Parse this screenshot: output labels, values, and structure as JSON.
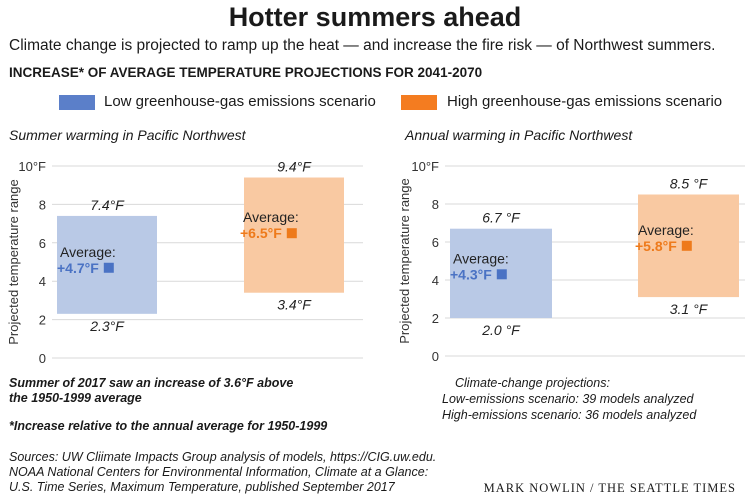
{
  "title": "Hotter summers ahead",
  "subtitle": "Climate change is projected to ramp up the heat — and increase the fire risk — of Northwest summers.",
  "section_heading": "INCREASE* OF AVERAGE TEMPERATURE PROJECTIONS FOR 2041-2070",
  "legend": [
    {
      "label": "Low greenhouse-gas emissions scenario",
      "color": "#5b7fc9"
    },
    {
      "label": "High greenhouse-gas emissions scenario",
      "color": "#f47c20"
    }
  ],
  "colors": {
    "low_fill": "#b9c9e6",
    "high_fill": "#f9c9a2",
    "low_text": "#4a72c4",
    "high_text": "#ee7a1b"
  },
  "chart_data": [
    {
      "type": "bar",
      "title": "Summer warming in Pacific Northwest",
      "ylabel": "Projected temperature range",
      "yticks": [
        "0",
        "2",
        "4",
        "6",
        "8",
        "10°F"
      ],
      "ylim": [
        0,
        10
      ],
      "grid": true,
      "series": [
        {
          "scenario": "low",
          "low": 2.3,
          "high": 7.4,
          "average": 4.7,
          "low_label": "2.3°F",
          "high_label": "7.4°F",
          "average_label": "Average:",
          "average_value": "+4.7°F"
        },
        {
          "scenario": "high",
          "low": 3.4,
          "high": 9.4,
          "average": 6.5,
          "low_label": "3.4°F",
          "high_label": "9.4°F",
          "average_label": "Average:",
          "average_value": "+6.5°F"
        }
      ]
    },
    {
      "type": "bar",
      "title": "Annual warming in Pacific Northwest",
      "ylabel": "Projected temperature range",
      "yticks": [
        "0",
        "2",
        "4",
        "6",
        "8",
        "10°F"
      ],
      "ylim": [
        0,
        10
      ],
      "grid": true,
      "series": [
        {
          "scenario": "low",
          "low": 2.0,
          "high": 6.7,
          "average": 4.3,
          "low_label": "2.0 °F",
          "high_label": "6.7 °F",
          "average_label": "Average:",
          "average_value": "+4.3°F"
        },
        {
          "scenario": "high",
          "low": 3.1,
          "high": 8.5,
          "average": 5.8,
          "low_label": "3.1 °F",
          "high_label": "8.5 °F",
          "average_label": "Average:",
          "average_value": "+5.8°F"
        }
      ]
    }
  ],
  "notes": {
    "summer_2017_line1": "Summer of 2017 saw an increase of 3.6°F above",
    "summer_2017_line2": "the 1950-1999 average",
    "asterisk": "*Increase relative to the annual average for 1950-1999",
    "projections_heading": "Climate-change projections:",
    "projections_low": "Low-emissions scenario: 39 models analyzed",
    "projections_high": "High-emissions scenario: 36 models analyzed",
    "sources_line1": "Sources: UW Cliimate Impacts Group analysis of models, https://CIG.uw.edu.",
    "sources_line2": "NOAA National Centers for Environmental Information, Climate at a Glance:",
    "sources_line3": "U.S. Time Series, Maximum Temperature, published September 2017"
  },
  "credit": "MARK NOWLIN / THE SEATTLE TIMES"
}
